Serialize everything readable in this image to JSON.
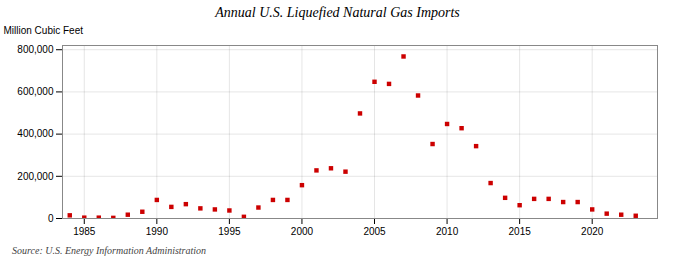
{
  "chart_data": {
    "type": "scatter",
    "title": "Annual U.S. Liquefied Natural Gas Imports",
    "ylabel": "Million Cubic Feet",
    "source": "Source: U.S. Energy Information Administration",
    "x": [
      1984,
      1985,
      1986,
      1987,
      1988,
      1989,
      1990,
      1991,
      1992,
      1993,
      1994,
      1995,
      1996,
      1997,
      1998,
      1999,
      2000,
      2001,
      2002,
      2003,
      2004,
      2005,
      2006,
      2007,
      2008,
      2009,
      2010,
      2011,
      2012,
      2013,
      2014,
      2015,
      2016,
      2017,
      2018,
      2019,
      2020,
      2021,
      2022,
      2023
    ],
    "values": [
      15000,
      4000,
      4000,
      3000,
      18000,
      32000,
      88000,
      55000,
      68000,
      48000,
      43000,
      38000,
      8000,
      52000,
      88000,
      88000,
      158000,
      228000,
      238000,
      222000,
      498000,
      648000,
      638000,
      768000,
      583000,
      353000,
      448000,
      428000,
      343000,
      168000,
      98000,
      63000,
      93000,
      93000,
      78000,
      78000,
      43000,
      23000,
      18000,
      13000
    ],
    "color": "#cc0000",
    "marker": "square",
    "xlim": [
      1983.5,
      2024.5
    ],
    "ylim": [
      0,
      820000
    ],
    "xticks": [
      1985,
      1990,
      1995,
      2000,
      2005,
      2010,
      2015,
      2020
    ],
    "yticks": [
      0,
      {
        "value": 200000,
        "label": "200,000"
      },
      {
        "value": 400000,
        "label": "400,000"
      },
      {
        "value": 600000,
        "label": "600,000"
      },
      {
        "value": 800000,
        "label": "800,000"
      }
    ],
    "grid": true
  }
}
